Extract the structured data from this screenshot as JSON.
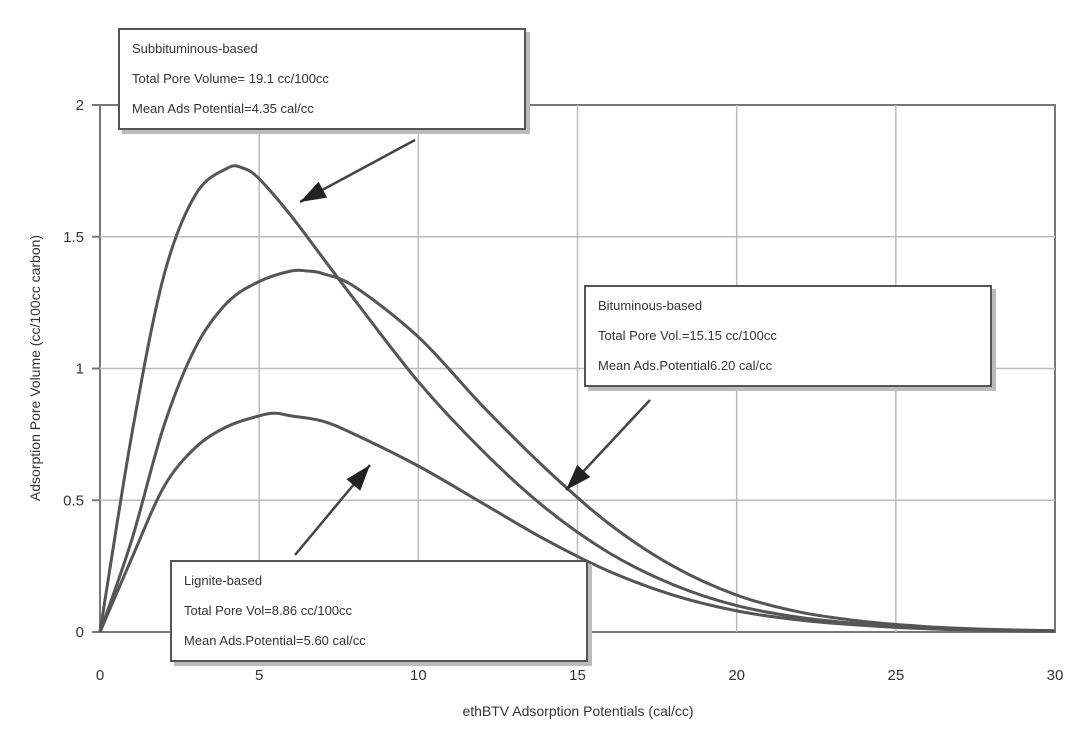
{
  "chart_data": {
    "type": "line",
    "xlabel": "ethBTV Adsorption Potentials (cal/cc)",
    "ylabel": "Adsorption Pore Volume (cc/100cc carbon)",
    "xlim": [
      0,
      30
    ],
    "ylim": [
      0,
      2
    ],
    "xticks": [
      "0",
      "5",
      "10",
      "15",
      "20",
      "25",
      "30"
    ],
    "yticks": [
      "0",
      "0.5",
      "1",
      "1.5",
      "2"
    ],
    "grid": true,
    "series": [
      {
        "name": "Subbituminous-based",
        "x": [
          0,
          1,
          2,
          3,
          4,
          4.5,
          5,
          6,
          7,
          8,
          10,
          12,
          14,
          16,
          18,
          20,
          22,
          24,
          26,
          28,
          30
        ],
        "values": [
          0,
          0.75,
          1.35,
          1.66,
          1.76,
          1.76,
          1.72,
          1.58,
          1.42,
          1.26,
          0.95,
          0.69,
          0.47,
          0.3,
          0.18,
          0.1,
          0.055,
          0.03,
          0.015,
          0.008,
          0.004
        ],
        "labels": [
          "Subbituminous-based",
          "Total Pore Volume= 19.1 cc/100cc",
          "Mean Ads Potential=4.35 cal/cc"
        ]
      },
      {
        "name": "Bituminous-based",
        "x": [
          0,
          1,
          2,
          3,
          4,
          5,
          6,
          6.5,
          7,
          8,
          10,
          12,
          14,
          16,
          18,
          20,
          22,
          24,
          26,
          28,
          30
        ],
        "values": [
          0,
          0.35,
          0.78,
          1.08,
          1.25,
          1.33,
          1.37,
          1.37,
          1.36,
          1.31,
          1.12,
          0.86,
          0.62,
          0.41,
          0.25,
          0.14,
          0.075,
          0.04,
          0.02,
          0.01,
          0.005
        ],
        "labels": [
          "Bituminous-based",
          "Total Pore Vol.=15.15 cc/100cc",
          "Mean Ads.Potential6.20 cal/cc"
        ]
      },
      {
        "name": "Lignite-based",
        "x": [
          0,
          1,
          2,
          3,
          4,
          5,
          5.5,
          6,
          7,
          8,
          10,
          12,
          14,
          16,
          18,
          20,
          22,
          24,
          26,
          28,
          30
        ],
        "values": [
          0,
          0.28,
          0.55,
          0.7,
          0.78,
          0.82,
          0.83,
          0.82,
          0.8,
          0.75,
          0.63,
          0.49,
          0.35,
          0.23,
          0.14,
          0.08,
          0.045,
          0.025,
          0.012,
          0.006,
          0.003
        ],
        "labels": [
          "Lignite-based",
          "Total Pore Vol=8.86 cc/100cc",
          "Mean Ads.Potential=5.60 cal/cc"
        ]
      }
    ]
  }
}
